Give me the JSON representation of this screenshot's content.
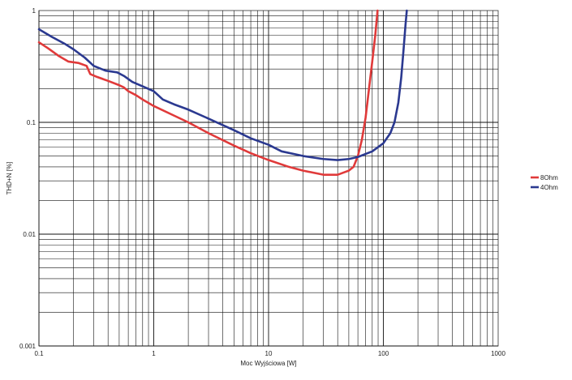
{
  "chart_data": {
    "type": "line",
    "title": "",
    "xlabel": "Moc Wyjściowa [W]",
    "ylabel": "THD+N [%]",
    "x_scale": "log",
    "y_scale": "log",
    "xlim": [
      0.1,
      1000
    ],
    "ylim": [
      0.001,
      1
    ],
    "grid": true,
    "legend_position": "right",
    "x_ticks": [
      {
        "value": 0.1,
        "label": "0.1"
      },
      {
        "value": 1,
        "label": "1"
      },
      {
        "value": 10,
        "label": "10"
      },
      {
        "value": 100,
        "label": "100"
      },
      {
        "value": 1000,
        "label": "1000"
      }
    ],
    "y_ticks": [
      {
        "value": 0.001,
        "label": "0.001"
      },
      {
        "value": 0.01,
        "label": "0.01"
      },
      {
        "value": 0.1,
        "label": "0.1"
      },
      {
        "value": 1,
        "label": "1"
      }
    ],
    "series": [
      {
        "name": "8Ohm",
        "color": "#e03a3a",
        "points": [
          [
            0.1,
            0.52
          ],
          [
            0.12,
            0.46
          ],
          [
            0.15,
            0.39
          ],
          [
            0.18,
            0.35
          ],
          [
            0.22,
            0.34
          ],
          [
            0.26,
            0.32
          ],
          [
            0.28,
            0.27
          ],
          [
            0.32,
            0.255
          ],
          [
            0.4,
            0.235
          ],
          [
            0.5,
            0.215
          ],
          [
            0.55,
            0.205
          ],
          [
            0.6,
            0.19
          ],
          [
            0.7,
            0.175
          ],
          [
            0.8,
            0.16
          ],
          [
            1.0,
            0.14
          ],
          [
            1.5,
            0.115
          ],
          [
            2.0,
            0.1
          ],
          [
            3.0,
            0.08
          ],
          [
            5.0,
            0.062
          ],
          [
            7.0,
            0.053
          ],
          [
            10,
            0.046
          ],
          [
            15,
            0.04
          ],
          [
            20,
            0.037
          ],
          [
            30,
            0.034
          ],
          [
            40,
            0.034
          ],
          [
            50,
            0.037
          ],
          [
            55,
            0.04
          ],
          [
            60,
            0.05
          ],
          [
            65,
            0.07
          ],
          [
            70,
            0.11
          ],
          [
            75,
            0.2
          ],
          [
            80,
            0.35
          ],
          [
            85,
            0.6
          ],
          [
            89,
            1.0
          ]
        ]
      },
      {
        "name": "4Ohm",
        "color": "#2b3990",
        "points": [
          [
            0.1,
            0.68
          ],
          [
            0.13,
            0.58
          ],
          [
            0.17,
            0.5
          ],
          [
            0.2,
            0.45
          ],
          [
            0.25,
            0.38
          ],
          [
            0.3,
            0.32
          ],
          [
            0.38,
            0.29
          ],
          [
            0.48,
            0.28
          ],
          [
            0.55,
            0.26
          ],
          [
            0.65,
            0.23
          ],
          [
            0.8,
            0.21
          ],
          [
            1.0,
            0.19
          ],
          [
            1.2,
            0.16
          ],
          [
            1.5,
            0.145
          ],
          [
            2.0,
            0.13
          ],
          [
            3.0,
            0.108
          ],
          [
            5.0,
            0.085
          ],
          [
            7.0,
            0.072
          ],
          [
            10,
            0.063
          ],
          [
            13,
            0.055
          ],
          [
            20,
            0.05
          ],
          [
            30,
            0.047
          ],
          [
            40,
            0.046
          ],
          [
            50,
            0.047
          ],
          [
            60,
            0.049
          ],
          [
            80,
            0.055
          ],
          [
            100,
            0.065
          ],
          [
            115,
            0.08
          ],
          [
            125,
            0.1
          ],
          [
            135,
            0.15
          ],
          [
            143,
            0.25
          ],
          [
            150,
            0.45
          ],
          [
            156,
            0.75
          ],
          [
            160,
            1.0
          ]
        ]
      }
    ]
  }
}
